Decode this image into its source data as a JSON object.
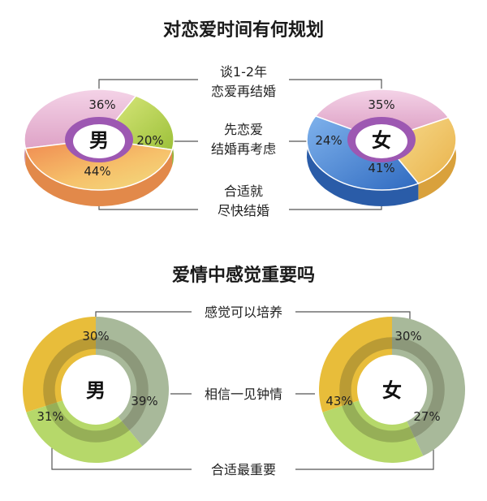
{
  "chart_data": [
    {
      "type": "pie",
      "title": "对恋爱时间有何规划",
      "categories": [
        "谈1-2年恋爱再结婚",
        "先恋爱结婚再考虑",
        "合适就尽快结婚"
      ],
      "category_lines": [
        [
          "谈1-2年",
          "恋爱再结婚"
        ],
        [
          "先恋爱",
          "结婚再考虑"
        ],
        [
          "合适就",
          "尽快结婚"
        ]
      ],
      "series": [
        {
          "name": "男",
          "values": [
            36,
            20,
            44
          ],
          "labels": [
            "36%",
            "20%",
            "44%"
          ]
        },
        {
          "name": "女",
          "values": [
            35,
            24,
            41
          ],
          "labels": [
            "35%",
            "24%",
            "41%"
          ]
        }
      ],
      "colors": {
        "男": [
          "#e9b8d6",
          "#b7d24a",
          "#f3a25a"
        ],
        "女": [
          "#e9b8d6",
          "#f2c96a",
          "#3f7fd0"
        ]
      }
    },
    {
      "type": "pie",
      "title": "爱情中感觉重要吗",
      "categories": [
        "感觉可以培养",
        "相信一见钟情",
        "合适最重要"
      ],
      "series": [
        {
          "name": "男",
          "values": [
            30,
            39,
            31
          ],
          "labels": [
            "30%",
            "39%",
            "31%"
          ]
        },
        {
          "name": "女",
          "values": [
            30,
            43,
            27
          ],
          "labels": [
            "30%",
            "43%",
            "27%"
          ]
        }
      ],
      "colors": [
        "#e8bd3a",
        "#a8b99a",
        "#b6d86a"
      ]
    }
  ]
}
